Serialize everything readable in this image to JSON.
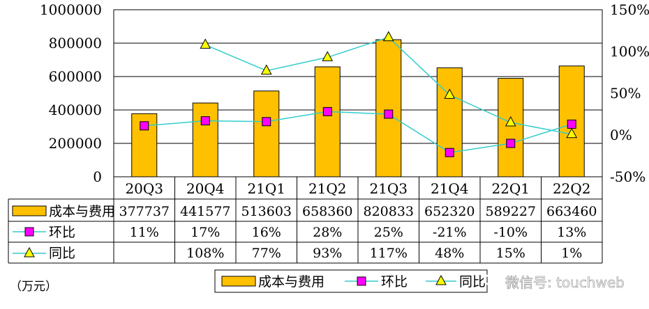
{
  "chart_data": {
    "type": "bar",
    "categories": [
      "20Q3",
      "20Q4",
      "21Q1",
      "21Q2",
      "21Q3",
      "21Q4",
      "22Q1",
      "22Q2"
    ],
    "unit_label": "（万元）",
    "left_axis": {
      "min": 0,
      "max": 1000000,
      "ticks": [
        "0",
        "200000",
        "400000",
        "600000",
        "800000",
        "1000000"
      ]
    },
    "right_axis": {
      "min": -50,
      "max": 150,
      "ticks": [
        "-50%",
        "0%",
        "50%",
        "100%",
        "150%"
      ]
    },
    "series": [
      {
        "name": "成本与费用",
        "kind": "bar",
        "color": "#FFC000",
        "values": [
          377737,
          441577,
          513603,
          658360,
          820833,
          652320,
          589227,
          663460
        ],
        "labels": [
          "377737",
          "441577",
          "513603",
          "658360",
          "820833",
          "652320",
          "589227",
          "663460"
        ]
      },
      {
        "name": "环比",
        "kind": "line",
        "axis": "right",
        "marker": "square",
        "color": "#FF00FF",
        "line_color": "#33CCCC",
        "values": [
          11,
          17,
          16,
          28,
          25,
          -21,
          -10,
          13
        ],
        "labels": [
          "11%",
          "17%",
          "16%",
          "28%",
          "25%",
          "-21%",
          "-10%",
          "13%"
        ]
      },
      {
        "name": "同比",
        "kind": "line",
        "axis": "right",
        "marker": "triangle",
        "color": "#FFFF00",
        "line_color": "#33CCCC",
        "values": [
          null,
          108,
          77,
          93,
          117,
          48,
          15,
          1
        ],
        "labels": [
          "",
          "108%",
          "77%",
          "93%",
          "117%",
          "48%",
          "15%",
          "1%"
        ]
      }
    ],
    "legend": {
      "position": "bottom",
      "labels": [
        "成本与费用",
        "环比",
        "同比"
      ]
    },
    "grid": true
  },
  "watermark": {
    "text": "微信号: touchweb",
    "icon": "wechat-icon"
  }
}
